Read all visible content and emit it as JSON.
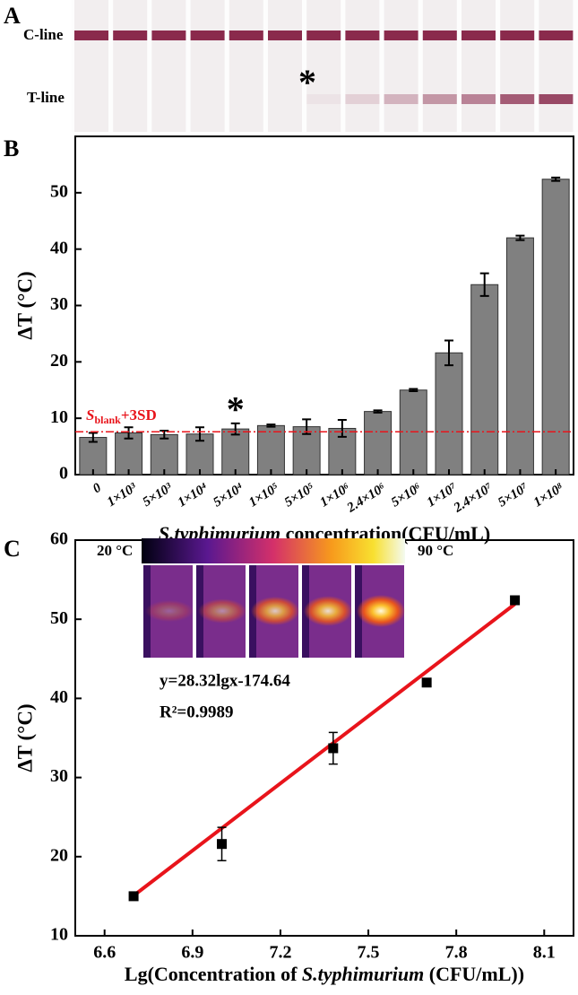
{
  "panel_a": {
    "label": "A",
    "c_line": "C-line",
    "t_line": "T-line",
    "star": "*"
  },
  "chart_data": [
    {
      "type": "bar",
      "panel_label": "B",
      "categories": [
        "0",
        "1×10³",
        "5×10³",
        "1×10⁴",
        "5×10⁴",
        "1×10⁵",
        "5×10⁵",
        "1×10⁶",
        "2.4×10⁶",
        "5×10⁶",
        "1×10⁷",
        "2.4×10⁷",
        "5×10⁷",
        "1×10⁸"
      ],
      "values": [
        6.6,
        7.4,
        7.1,
        7.2,
        8.1,
        8.7,
        8.5,
        8.2,
        11.2,
        15.0,
        21.6,
        33.7,
        42.0,
        52.4
      ],
      "errors": [
        0.8,
        1.0,
        0.7,
        1.2,
        1.0,
        0.2,
        1.3,
        1.5,
        0.2,
        0.2,
        2.2,
        2.0,
        0.4,
        0.3
      ],
      "color": "#808080",
      "ylim": [
        0,
        60
      ],
      "yticks": [
        0,
        10,
        20,
        30,
        40,
        50
      ],
      "y_label": "ΔT (°C)",
      "x_label_parts": [
        "S.typhimurium",
        " concentration(CFU/mL)"
      ],
      "threshold": 7.6,
      "threshold_color": "#e8141b",
      "threshold_label": {
        "italic": "S",
        "sub": "blank",
        "rest": "+3SD"
      },
      "star": "*"
    },
    {
      "type": "scatter",
      "panel_label": "C",
      "x": [
        6.699,
        7.0,
        7.38,
        7.699,
        8.0
      ],
      "values": [
        15.0,
        21.6,
        33.7,
        42.0,
        52.4
      ],
      "errors": [
        0.3,
        2.1,
        2.0,
        0.5,
        0.4
      ],
      "color": "#000000",
      "fit": {
        "slope": 28.32,
        "intercept": -174.64,
        "color": "#e8141b"
      },
      "equation": "y=28.32lgx-174.64",
      "r2": "R²=0.9989",
      "xlim": [
        6.5,
        8.2
      ],
      "xticks": [
        6.6,
        6.9,
        7.2,
        7.5,
        7.8,
        8.1
      ],
      "ylim": [
        10,
        60
      ],
      "yticks": [
        10,
        20,
        30,
        40,
        50,
        60
      ],
      "y_label": "ΔT (°C)",
      "x_label_parts": [
        "Lg(Concentration of ",
        "S.typhimurium",
        " (CFU/mL))"
      ],
      "inset": {
        "low": "20 °C",
        "high": "90 °C"
      }
    }
  ]
}
